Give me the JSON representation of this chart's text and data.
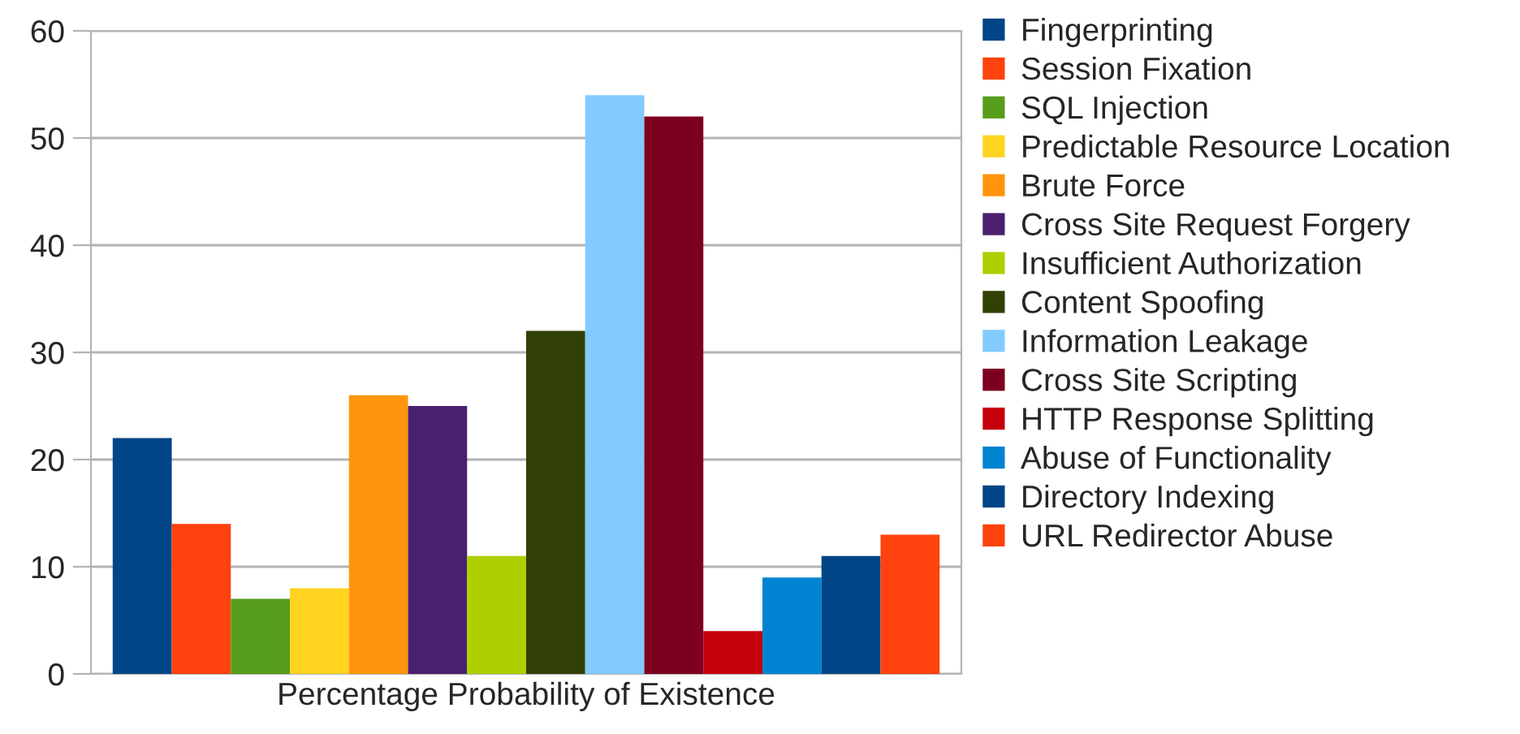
{
  "chart_data": {
    "type": "bar",
    "categories": [
      "Percentage Probability of Existence"
    ],
    "ylim": [
      0,
      60
    ],
    "yticks": [
      0,
      10,
      20,
      30,
      40,
      50,
      60
    ],
    "grid": "y",
    "legend": "right",
    "series": [
      {
        "name": "Fingerprinting",
        "color": "#004586",
        "values": [
          22
        ]
      },
      {
        "name": "Session Fixation",
        "color": "#ff420e",
        "values": [
          14
        ]
      },
      {
        "name": "SQL Injection",
        "color": "#579d1c",
        "values": [
          7
        ]
      },
      {
        "name": "Predictable Resource Location",
        "color": "#ffd320",
        "values": [
          8
        ]
      },
      {
        "name": "Brute Force",
        "color": "#ff950e",
        "values": [
          26
        ]
      },
      {
        "name": "Cross Site Request Forgery",
        "color": "#4b1f6f",
        "values": [
          25
        ]
      },
      {
        "name": "Insufficient Authorization",
        "color": "#aecf00",
        "values": [
          11
        ]
      },
      {
        "name": "Content Spoofing",
        "color": "#314004",
        "values": [
          32
        ]
      },
      {
        "name": "Information Leakage",
        "color": "#83caff",
        "values": [
          54
        ]
      },
      {
        "name": "Cross Site Scripting",
        "color": "#7e0021",
        "values": [
          52
        ]
      },
      {
        "name": "HTTP Response Splitting",
        "color": "#c5000b",
        "values": [
          4
        ]
      },
      {
        "name": "Abuse of Functionality",
        "color": "#0084d1",
        "values": [
          9
        ]
      },
      {
        "name": "Directory Indexing",
        "color": "#004586",
        "values": [
          11
        ]
      },
      {
        "name": "URL Redirector Abuse",
        "color": "#ff420e",
        "values": [
          13
        ]
      }
    ]
  }
}
